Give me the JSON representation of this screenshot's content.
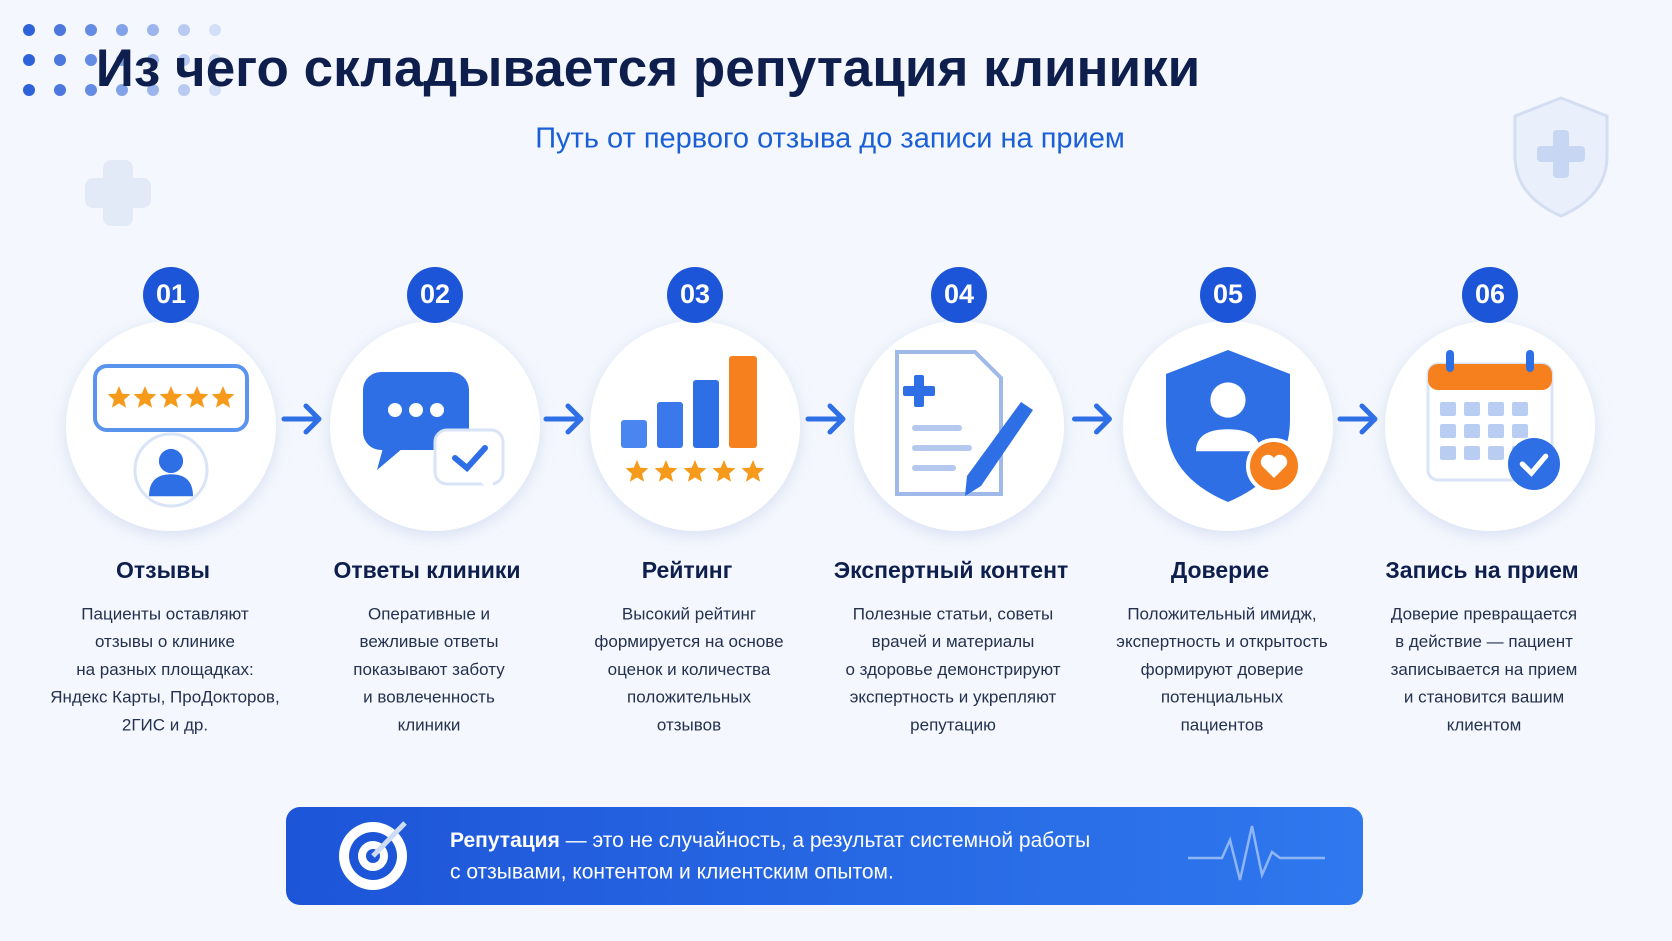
{
  "header": {
    "title": "Из чего складывается репутация клиники",
    "subtitle": "Путь от первого отзыва до записи на прием"
  },
  "steps": [
    {
      "number": "01",
      "title": "Отзывы",
      "description": [
        "Пациенты оставляют",
        "отзывы о клинике",
        "на разных площадках:",
        "Яндекс Карты, ПроДокторов,",
        "2ГИС и др."
      ]
    },
    {
      "number": "02",
      "title": "Ответы клиники",
      "description": [
        "Оперативные и",
        "вежливые ответы",
        "показывают заботу",
        "и вовлеченность",
        "клиники"
      ]
    },
    {
      "number": "03",
      "title": "Рейтинг",
      "description": [
        "Высокий рейтинг",
        "формируется на основе",
        "оценок и количества",
        "положительных",
        "отзывов"
      ]
    },
    {
      "number": "04",
      "title": "Экспертный контент",
      "description": [
        "Полезные статьи, советы",
        "врачей и материалы",
        "о здоровье демонстрируют",
        "экспертность и укрепляют",
        "репутацию"
      ]
    },
    {
      "number": "05",
      "title": "Доверие",
      "description": [
        "Положительный имидж,",
        "экспертность и открытость",
        "формируют доверие",
        "потенциальных",
        "пациентов"
      ]
    },
    {
      "number": "06",
      "title": "Запись на прием",
      "description": [
        "Доверие превращается",
        "в действие — пациент",
        "записывается на прием",
        "и становится вашим",
        "клиентом"
      ]
    }
  ],
  "footer": {
    "bold": "Репутация",
    "lines": [
      " — это не случайность, а результат системной работы",
      "с отзывами, контентом и клиентским опытом."
    ]
  }
}
